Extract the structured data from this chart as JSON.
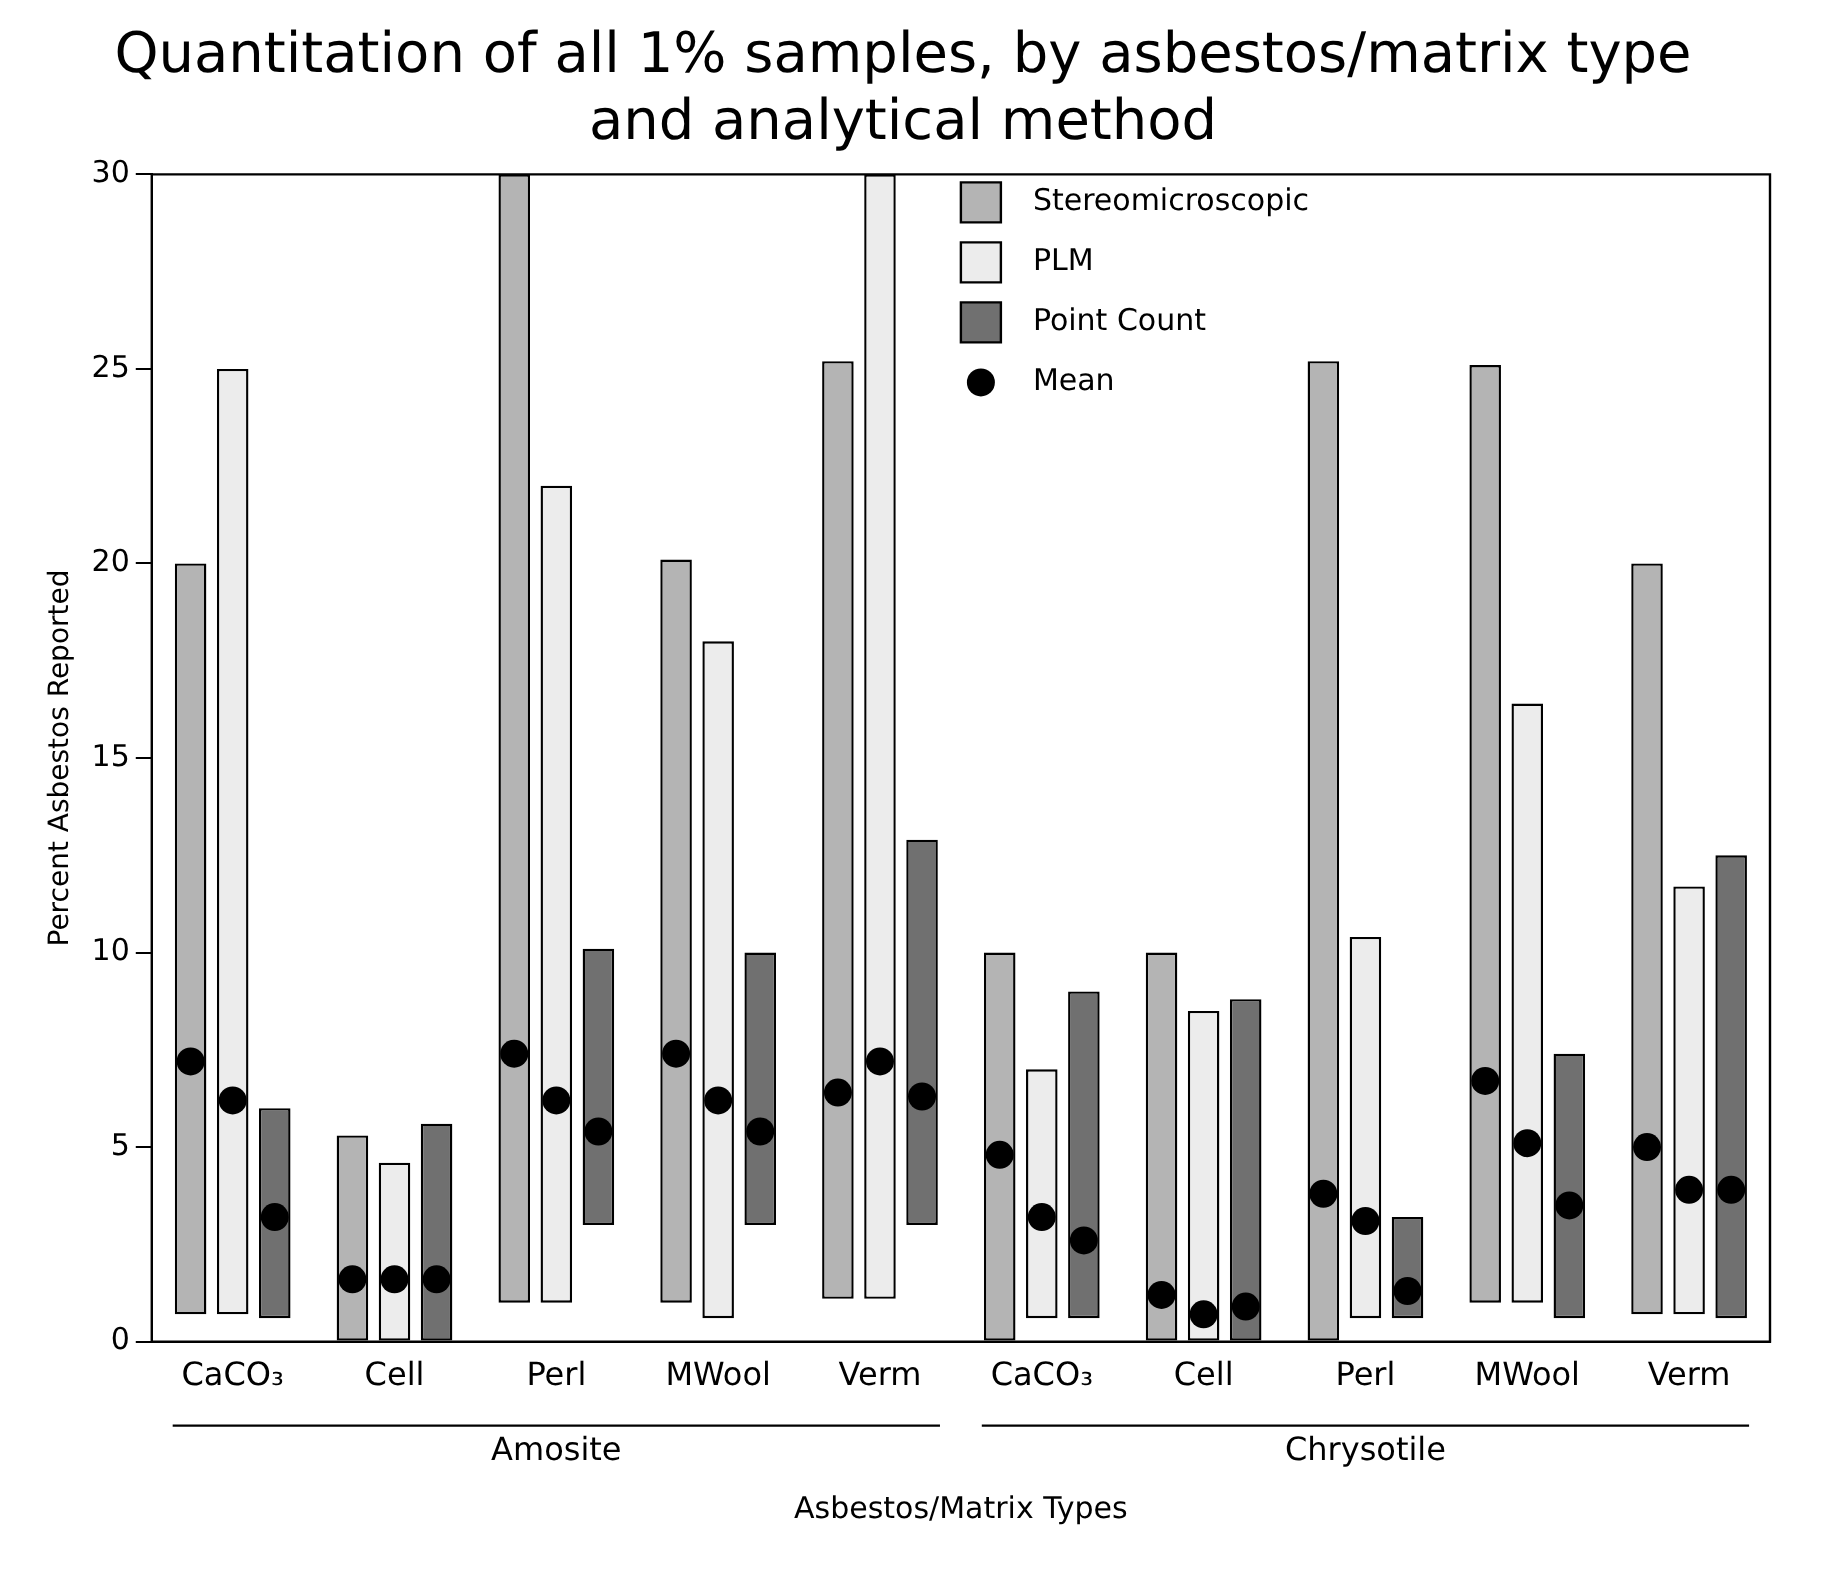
{
  "chart_data": {
    "type": "bar",
    "title": "Quantitation of all 1% samples, by asbestos/matrix type and analytical method",
    "xlabel": "Asbestos/Matrix Types",
    "ylabel": "Percent Asbestos Reported",
    "categories": [
      "CaCO₃",
      "Cell",
      "Perl",
      "MWool",
      "Verm",
      "CaCO₃",
      "Cell",
      "Perl",
      "MWool",
      "Verm"
    ],
    "series": [
      {
        "name": "Stereomicroscopic",
        "color": "#b4b4b4",
        "base": [
          0.7,
          0,
          1.0,
          1.0,
          1.1,
          0,
          0,
          0,
          1.0,
          0.7
        ],
        "values": [
          19.3,
          5.3,
          29,
          19.1,
          24.1,
          10,
          10,
          25.2,
          24.1,
          19.3
        ]
      },
      {
        "name": "PLM",
        "color": "#ececec",
        "base": [
          0.7,
          0,
          1.0,
          0.6,
          1.1,
          0.6,
          0,
          0.6,
          1.0,
          0.7
        ],
        "values": [
          24.3,
          4.6,
          21,
          17.4,
          28.9,
          6.4,
          8.5,
          9.8,
          15.4,
          11
        ]
      },
      {
        "name": "Point Count",
        "color": "#707070",
        "base": [
          0.6,
          0,
          3,
          3,
          3,
          0.6,
          0,
          0.6,
          0.6,
          0.6
        ],
        "values": [
          5.4,
          5.6,
          7.1,
          7,
          9.9,
          8.4,
          8.8,
          2.6,
          6.8,
          11.9
        ]
      },
      {
        "name": "Mean",
        "type": "scatter",
        "color": "#000000",
        "values": [
          7.2,
          1.6,
          7.4,
          7.4,
          6.4,
          4.8,
          1.2,
          3.8,
          6.7,
          5.0
        ]
      },
      {
        "type": "scatter",
        "color": "#000000",
        "values": [
          6.2,
          1.6,
          6.2,
          6.2,
          7.2,
          3.2,
          0.7,
          3.1,
          5.1,
          3.9
        ]
      },
      {
        "type": "scatter",
        "color": "#000000",
        "values": [
          3.2,
          1.6,
          5.4,
          5.4,
          6.3,
          2.6,
          0.9,
          1.3,
          3.5,
          3.9
        ]
      }
    ],
    "annotations": [
      "Amosite",
      "Chrysotile"
    ],
    "ylim": [
      0,
      30
    ],
    "yticks": [
      0,
      5,
      10,
      15,
      20,
      25,
      30
    ],
    "grid": false,
    "legend": "top right",
    "marker": "circle"
  }
}
